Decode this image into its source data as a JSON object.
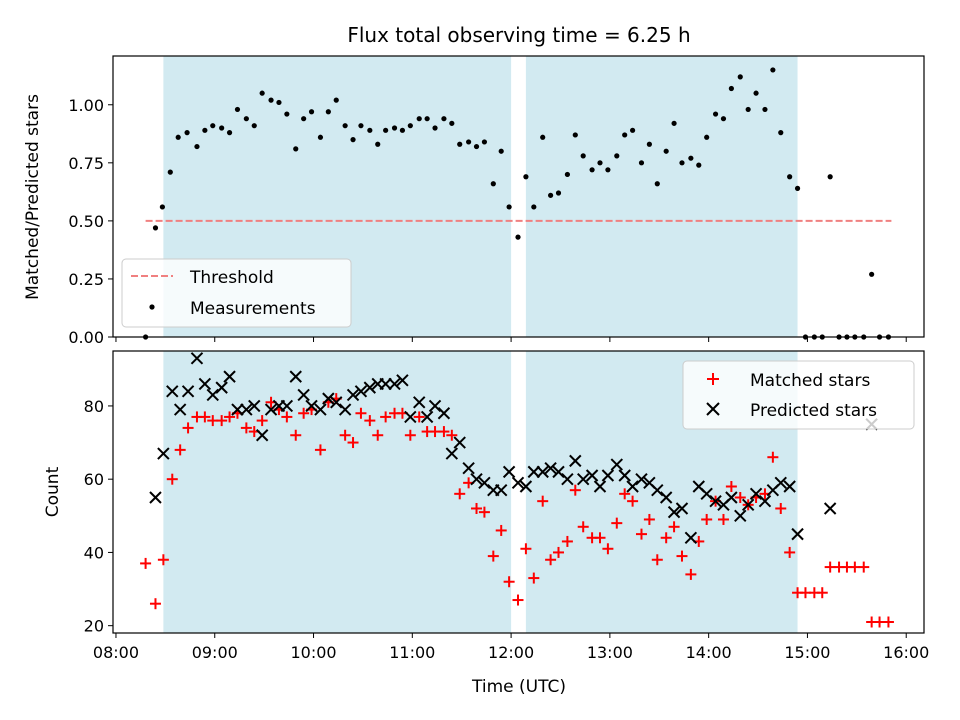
{
  "chart_data": {
    "title": "Flux total observing time = 6.25 h",
    "xlabel": "Time (UTC)",
    "x_unit": "hour (UTC, decimal)",
    "xlim": [
      7.97,
      16.18
    ],
    "x_ticks": [
      8,
      9,
      10,
      11,
      12,
      13,
      14,
      15,
      16
    ],
    "x_tick_labels": [
      "08:00",
      "09:00",
      "10:00",
      "11:00",
      "12:00",
      "13:00",
      "14:00",
      "15:00",
      "16:00"
    ],
    "colors": {
      "shade": "#add8e6",
      "threshold": "#f08080",
      "measurement": "#000000",
      "matched": "#ff0000",
      "predicted": "#000000"
    },
    "observing_windows": [
      [
        8.48,
        12.0
      ],
      [
        12.15,
        14.9
      ]
    ],
    "panels": [
      {
        "type": "scatter",
        "ylabel": "Matched/Predicted stars",
        "ylim": [
          0,
          1.21
        ],
        "y_ticks": [
          0,
          0.25,
          0.5,
          0.75,
          1.0
        ],
        "y_tick_labels": [
          "0.00",
          "0.25",
          "0.50",
          "0.75",
          "1.00"
        ],
        "legend_position": "lower-left",
        "threshold": {
          "name": "Threshold",
          "value": 0.5,
          "x_range": [
            8.3,
            15.85
          ]
        },
        "series": [
          {
            "name": "Measurements",
            "marker": "dot",
            "x": [
              8.3,
              8.4,
              8.47,
              8.55,
              8.63,
              8.72,
              8.82,
              8.9,
              8.98,
              9.07,
              9.15,
              9.23,
              9.32,
              9.4,
              9.48,
              9.57,
              9.65,
              9.73,
              9.82,
              9.9,
              9.98,
              10.07,
              10.15,
              10.23,
              10.32,
              10.4,
              10.48,
              10.57,
              10.65,
              10.73,
              10.82,
              10.9,
              10.98,
              11.07,
              11.15,
              11.23,
              11.32,
              11.4,
              11.48,
              11.57,
              11.65,
              11.73,
              11.82,
              11.9,
              11.98,
              12.07,
              12.15,
              12.23,
              12.32,
              12.4,
              12.48,
              12.57,
              12.65,
              12.73,
              12.82,
              12.9,
              12.98,
              13.07,
              13.15,
              13.23,
              13.32,
              13.4,
              13.48,
              13.57,
              13.65,
              13.73,
              13.82,
              13.9,
              13.98,
              14.07,
              14.15,
              14.23,
              14.32,
              14.4,
              14.48,
              14.57,
              14.65,
              14.73,
              14.82,
              14.9,
              14.98,
              15.07,
              15.15,
              15.23,
              15.32,
              15.4,
              15.48,
              15.57,
              15.65,
              15.73,
              15.82
            ],
            "y": [
              0.0,
              0.47,
              0.56,
              0.71,
              0.86,
              0.88,
              0.82,
              0.89,
              0.91,
              0.9,
              0.88,
              0.98,
              0.94,
              0.91,
              1.05,
              1.02,
              1.01,
              0.96,
              0.81,
              0.94,
              0.97,
              0.86,
              0.97,
              1.02,
              0.91,
              0.85,
              0.91,
              0.89,
              0.83,
              0.89,
              0.9,
              0.89,
              0.91,
              0.94,
              0.94,
              0.9,
              0.94,
              0.92,
              0.83,
              0.84,
              0.82,
              0.84,
              0.66,
              0.8,
              0.56,
              0.43,
              0.69,
              0.56,
              0.86,
              0.61,
              0.62,
              0.7,
              0.87,
              0.78,
              0.72,
              0.75,
              0.72,
              0.78,
              0.87,
              0.89,
              0.75,
              0.83,
              0.66,
              0.8,
              0.92,
              0.75,
              0.77,
              0.74,
              0.86,
              0.96,
              0.94,
              1.07,
              1.12,
              0.98,
              1.05,
              0.98,
              1.15,
              0.88,
              0.69,
              0.64,
              0.0,
              0.0,
              0.0,
              0.69,
              0.0,
              0.0,
              0.0,
              0.0,
              0.27,
              0.0,
              0.0
            ]
          }
        ]
      },
      {
        "type": "scatter",
        "ylabel": "Count",
        "ylim": [
          18,
          95
        ],
        "y_ticks": [
          20,
          40,
          60,
          80
        ],
        "y_tick_labels": [
          "20",
          "40",
          "60",
          "80"
        ],
        "legend_position": "top-right",
        "series": [
          {
            "name": "Matched stars",
            "marker": "plus",
            "x": [
              8.3,
              8.4,
              8.48,
              8.57,
              8.65,
              8.73,
              8.82,
              8.9,
              8.98,
              9.07,
              9.15,
              9.23,
              9.32,
              9.4,
              9.48,
              9.57,
              9.65,
              9.73,
              9.82,
              9.9,
              9.98,
              10.07,
              10.15,
              10.23,
              10.32,
              10.4,
              10.48,
              10.57,
              10.65,
              10.73,
              10.82,
              10.9,
              10.98,
              11.07,
              11.15,
              11.23,
              11.32,
              11.4,
              11.48,
              11.57,
              11.65,
              11.73,
              11.82,
              11.9,
              11.98,
              12.07,
              12.15,
              12.23,
              12.32,
              12.4,
              12.48,
              12.57,
              12.65,
              12.73,
              12.82,
              12.9,
              12.98,
              13.07,
              13.15,
              13.23,
              13.32,
              13.4,
              13.48,
              13.57,
              13.65,
              13.73,
              13.82,
              13.9,
              13.98,
              14.07,
              14.15,
              14.23,
              14.32,
              14.4,
              14.48,
              14.57,
              14.65,
              14.73,
              14.82,
              14.9,
              14.98,
              15.07,
              15.15,
              15.23,
              15.32,
              15.4,
              15.48,
              15.57,
              15.65,
              15.73,
              15.82
            ],
            "y": [
              37,
              26,
              38,
              60,
              68,
              74,
              77,
              77,
              76,
              76,
              77,
              78,
              74,
              73,
              76,
              81,
              79,
              77,
              72,
              78,
              79,
              68,
              81,
              82,
              72,
              70,
              78,
              76,
              72,
              77,
              78,
              78,
              72,
              77,
              73,
              73,
              73,
              72,
              56,
              59,
              52,
              51,
              39,
              46,
              32,
              27,
              41,
              33,
              54,
              38,
              40,
              43,
              57,
              47,
              44,
              44,
              41,
              48,
              56,
              54,
              45,
              49,
              38,
              44,
              47,
              39,
              34,
              43,
              49,
              54,
              49,
              58,
              55,
              53,
              55,
              56,
              66,
              52,
              40,
              29,
              29,
              29,
              29,
              36,
              36,
              36,
              36,
              36,
              21,
              21,
              21
            ]
          },
          {
            "name": "Predicted stars",
            "marker": "x",
            "x": [
              8.4,
              8.48,
              8.57,
              8.65,
              8.73,
              8.82,
              8.9,
              8.98,
              9.07,
              9.15,
              9.23,
              9.32,
              9.4,
              9.48,
              9.57,
              9.65,
              9.73,
              9.82,
              9.9,
              9.98,
              10.07,
              10.15,
              10.23,
              10.32,
              10.4,
              10.48,
              10.57,
              10.65,
              10.73,
              10.82,
              10.9,
              10.98,
              11.07,
              11.15,
              11.23,
              11.32,
              11.4,
              11.48,
              11.57,
              11.65,
              11.73,
              11.82,
              11.9,
              11.98,
              12.07,
              12.15,
              12.23,
              12.32,
              12.4,
              12.48,
              12.57,
              12.65,
              12.73,
              12.82,
              12.9,
              12.98,
              13.07,
              13.15,
              13.23,
              13.32,
              13.4,
              13.48,
              13.57,
              13.65,
              13.73,
              13.82,
              13.9,
              13.98,
              14.07,
              14.15,
              14.23,
              14.32,
              14.4,
              14.48,
              14.57,
              14.65,
              14.73,
              14.82,
              14.9,
              15.23,
              15.65
            ],
            "y": [
              55,
              67,
              84,
              79,
              84,
              93,
              86,
              83,
              85,
              88,
              79,
              79,
              80,
              72,
              79,
              80,
              80,
              88,
              83,
              80,
              79,
              82,
              81,
              79,
              83,
              84,
              85,
              86,
              86,
              86,
              87,
              77,
              81,
              77,
              80,
              78,
              67,
              70,
              63,
              60,
              59,
              57,
              57,
              62,
              59,
              58,
              62,
              62,
              63,
              62,
              60,
              65,
              60,
              61,
              58,
              61,
              64,
              61,
              58,
              60,
              59,
              57,
              55,
              51,
              52,
              44,
              58,
              56,
              54,
              53,
              55,
              50,
              53,
              56,
              54,
              57,
              59,
              58,
              45,
              52,
              75
            ]
          }
        ]
      }
    ]
  }
}
